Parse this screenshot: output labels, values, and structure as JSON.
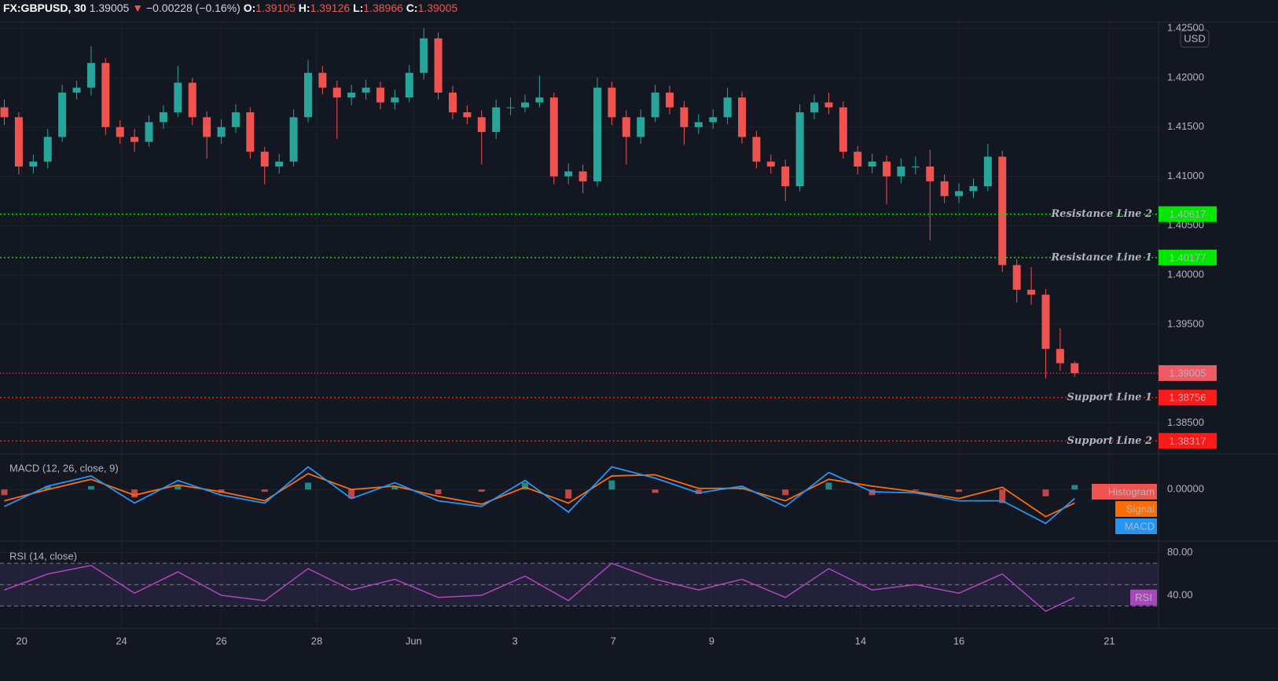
{
  "header": {
    "symbol": "FX:GBPUSD, 30",
    "change": "−0.00228 (−0.16%)",
    "o_label": "O:",
    "h_label": "H:",
    "l_label": "L:",
    "c_label": "C:"
  },
  "chart_data": [
    {
      "type": "candlestick",
      "currency": "USD",
      "up_color": "#26a69a",
      "down_color": "#ef5350",
      "ylim": [
        1.382,
        1.4255
      ],
      "yticks": [
        {
          "value": 1.385,
          "label": "1.38500"
        },
        {
          "value": 1.39,
          "label": "1.39000"
        },
        {
          "value": 1.395,
          "label": "1.39500"
        },
        {
          "value": 1.4,
          "label": "1.40000"
        },
        {
          "value": 1.405,
          "label": "1.40500"
        },
        {
          "value": 1.41,
          "label": "1.41000"
        },
        {
          "value": 1.415,
          "label": "1.41500"
        },
        {
          "value": 1.42,
          "label": "1.42000"
        },
        {
          "value": 1.425,
          "label": "1.42500"
        }
      ],
      "xlim": [
        -0.3,
        79.8
      ],
      "xticks": [
        {
          "value": 1.2,
          "label": "20"
        },
        {
          "value": 8.1,
          "label": "24"
        },
        {
          "value": 15.0,
          "label": "26"
        },
        {
          "value": 21.6,
          "label": "28"
        },
        {
          "value": 28.3,
          "label": "Jun"
        },
        {
          "value": 35.3,
          "label": "3"
        },
        {
          "value": 42.1,
          "label": "7"
        },
        {
          "value": 48.9,
          "label": "9"
        },
        {
          "value": 59.2,
          "label": "14"
        },
        {
          "value": 66.0,
          "label": "16"
        },
        {
          "value": 76.4,
          "label": "21"
        }
      ],
      "levels": [
        {
          "name": "Resistance Line 2",
          "value": 1.40617,
          "color": "#00e600"
        },
        {
          "name": "Resistance Line 1",
          "value": 1.40177,
          "color": "#00e600"
        },
        {
          "name": "Support Line 1",
          "value": 1.38756,
          "color": "#ff1a1a"
        },
        {
          "name": "Support Line 2",
          "value": 1.38317,
          "color": "#ff1a1a"
        }
      ],
      "last_price_color": "#f05a63",
      "candles": [
        [
          1.417,
          1.4178,
          1.4152,
          1.416
        ],
        [
          1.416,
          1.4165,
          1.4102,
          1.411
        ],
        [
          1.411,
          1.4122,
          1.4103,
          1.4115
        ],
        [
          1.4115,
          1.4148,
          1.4108,
          1.414
        ],
        [
          1.414,
          1.4193,
          1.4135,
          1.4185
        ],
        [
          1.4185,
          1.4197,
          1.4178,
          1.419
        ],
        [
          1.419,
          1.4232,
          1.4182,
          1.4215
        ],
        [
          1.4215,
          1.422,
          1.4142,
          1.415
        ],
        [
          1.415,
          1.4157,
          1.4133,
          1.414
        ],
        [
          1.414,
          1.4148,
          1.4125,
          1.4135
        ],
        [
          1.4135,
          1.4162,
          1.413,
          1.4155
        ],
        [
          1.4155,
          1.4172,
          1.4148,
          1.4165
        ],
        [
          1.4165,
          1.4212,
          1.416,
          1.4195
        ],
        [
          1.4195,
          1.42,
          1.4152,
          1.416
        ],
        [
          1.416,
          1.4166,
          1.4118,
          1.414
        ],
        [
          1.414,
          1.4158,
          1.4133,
          1.415
        ],
        [
          1.415,
          1.4173,
          1.4144,
          1.4165
        ],
        [
          1.4165,
          1.417,
          1.4118,
          1.4125
        ],
        [
          1.4125,
          1.413,
          1.4092,
          1.411
        ],
        [
          1.411,
          1.4123,
          1.4103,
          1.4115
        ],
        [
          1.4115,
          1.4168,
          1.411,
          1.416
        ],
        [
          1.416,
          1.4218,
          1.4155,
          1.4205
        ],
        [
          1.4205,
          1.4212,
          1.4183,
          1.419
        ],
        [
          1.419,
          1.4197,
          1.4138,
          1.418
        ],
        [
          1.418,
          1.4193,
          1.4172,
          1.4185
        ],
        [
          1.4185,
          1.4198,
          1.4178,
          1.419
        ],
        [
          1.419,
          1.4196,
          1.4168,
          1.4175
        ],
        [
          1.4175,
          1.4188,
          1.4168,
          1.418
        ],
        [
          1.418,
          1.4213,
          1.4175,
          1.4205
        ],
        [
          1.4205,
          1.425,
          1.4198,
          1.424
        ],
        [
          1.424,
          1.4246,
          1.4178,
          1.4185
        ],
        [
          1.4185,
          1.4192,
          1.4158,
          1.4165
        ],
        [
          1.4165,
          1.4172,
          1.4153,
          1.416
        ],
        [
          1.416,
          1.4167,
          1.4112,
          1.4145
        ],
        [
          1.4145,
          1.4178,
          1.4138,
          1.417
        ],
        [
          1.417,
          1.418,
          1.4162,
          1.417
        ],
        [
          1.417,
          1.4183,
          1.4165,
          1.4175
        ],
        [
          1.4175,
          1.4202,
          1.417,
          1.418
        ],
        [
          1.418,
          1.4185,
          1.4092,
          1.41
        ],
        [
          1.41,
          1.4113,
          1.4092,
          1.4105
        ],
        [
          1.4105,
          1.4112,
          1.4083,
          1.4095
        ],
        [
          1.4095,
          1.42,
          1.409,
          1.419
        ],
        [
          1.419,
          1.4196,
          1.4152,
          1.416
        ],
        [
          1.416,
          1.4167,
          1.4112,
          1.414
        ],
        [
          1.414,
          1.4168,
          1.4133,
          1.416
        ],
        [
          1.416,
          1.4193,
          1.4155,
          1.4185
        ],
        [
          1.4185,
          1.4192,
          1.4163,
          1.417
        ],
        [
          1.417,
          1.4176,
          1.4132,
          1.415
        ],
        [
          1.415,
          1.4163,
          1.4143,
          1.4155
        ],
        [
          1.4155,
          1.4168,
          1.4148,
          1.416
        ],
        [
          1.416,
          1.419,
          1.4153,
          1.418
        ],
        [
          1.418,
          1.4186,
          1.4133,
          1.414
        ],
        [
          1.414,
          1.4146,
          1.4108,
          1.4115
        ],
        [
          1.4115,
          1.4122,
          1.4103,
          1.411
        ],
        [
          1.411,
          1.4117,
          1.4075,
          1.409
        ],
        [
          1.409,
          1.4173,
          1.4085,
          1.4165
        ],
        [
          1.4165,
          1.4183,
          1.4158,
          1.4175
        ],
        [
          1.4175,
          1.4185,
          1.4163,
          1.417
        ],
        [
          1.417,
          1.4176,
          1.4118,
          1.4125
        ],
        [
          1.4125,
          1.4131,
          1.4102,
          1.411
        ],
        [
          1.411,
          1.4123,
          1.4103,
          1.4115
        ],
        [
          1.4115,
          1.4121,
          1.4072,
          1.41
        ],
        [
          1.41,
          1.4118,
          1.4093,
          1.411
        ],
        [
          1.411,
          1.412,
          1.4102,
          1.411
        ],
        [
          1.411,
          1.4127,
          1.4035,
          1.4095
        ],
        [
          1.4095,
          1.4102,
          1.4073,
          1.408
        ],
        [
          1.408,
          1.4093,
          1.4073,
          1.4085
        ],
        [
          1.4085,
          1.4098,
          1.4078,
          1.409
        ],
        [
          1.409,
          1.4133,
          1.4085,
          1.412
        ],
        [
          1.412,
          1.4126,
          1.4003,
          1.401
        ],
        [
          1.401,
          1.4016,
          1.3972,
          1.3985
        ],
        [
          1.3985,
          1.4008,
          1.397,
          1.398
        ],
        [
          1.398,
          1.3986,
          1.3895,
          1.3925
        ],
        [
          1.3925,
          1.3946,
          1.3903,
          1.39105
        ],
        [
          1.39105,
          1.39126,
          1.38966,
          1.39005
        ]
      ]
    },
    {
      "type": "macd",
      "title": "MACD (12, 26, close, 9)",
      "ylim": [
        -0.0045,
        0.003
      ],
      "yticks": [
        {
          "value": 0,
          "label": "0.00000"
        }
      ],
      "hist_up_color": "#26a69a",
      "x": [
        0,
        3,
        6,
        9,
        12,
        15,
        18,
        21,
        24,
        27,
        30,
        33,
        36,
        39,
        42,
        45,
        48,
        51,
        54,
        57,
        60,
        63,
        66,
        69,
        72,
        74
      ],
      "series": [
        {
          "name": "Histogram",
          "color": "#ef5350",
          "values": [
            -0.0005,
            0.0003,
            0.0003,
            -0.0007,
            0.0004,
            -0.0003,
            -0.0002,
            0.0006,
            -0.0008,
            0.0003,
            -0.0004,
            -0.0002,
            0.0006,
            -0.0008,
            0.0008,
            -0.0003,
            -0.0004,
            0.0002,
            -0.0005,
            0.0006,
            -0.0005,
            -0.0001,
            -0.0002,
            -0.0012,
            -0.0006,
            0.0004
          ]
        },
        {
          "name": "Signal",
          "color": "#ff6d00",
          "values": [
            -0.001,
            0.0,
            0.0009,
            -0.0005,
            0.0004,
            -0.0002,
            -0.001,
            0.0014,
            0.0,
            0.0003,
            -0.0006,
            -0.0013,
            0.0002,
            -0.0012,
            0.0012,
            0.0013,
            0.0001,
            0.0001,
            -0.001,
            0.0009,
            0.0003,
            -0.0002,
            -0.0008,
            0.0002,
            -0.0024,
            -0.0012
          ]
        },
        {
          "name": "MACD",
          "color": "#2196f3",
          "values": [
            -0.0015,
            0.0003,
            0.0012,
            -0.0012,
            0.0008,
            -0.0005,
            -0.0012,
            0.002,
            -0.0008,
            0.0006,
            -0.001,
            -0.0015,
            0.0008,
            -0.002,
            0.002,
            0.001,
            -0.0003,
            0.0003,
            -0.0015,
            0.0015,
            -0.0002,
            -0.0003,
            -0.001,
            -0.001,
            -0.003,
            -0.0008
          ]
        }
      ]
    },
    {
      "type": "rsi",
      "title": "RSI (14, close)",
      "ylim": [
        9,
        90
      ],
      "yticks": [
        {
          "value": 80,
          "label": "80.00"
        },
        {
          "value": 40,
          "label": "40.00"
        }
      ],
      "bands": [
        70,
        50,
        30
      ],
      "x": [
        0,
        3,
        6,
        9,
        12,
        15,
        18,
        21,
        24,
        27,
        30,
        33,
        36,
        39,
        42,
        45,
        48,
        51,
        54,
        57,
        60,
        63,
        66,
        69,
        72,
        74
      ],
      "series": [
        {
          "name": "RSI",
          "color": "#ab47bc",
          "values": [
            45,
            60,
            68,
            42,
            62,
            40,
            35,
            65,
            45,
            55,
            38,
            40,
            58,
            35,
            70,
            55,
            45,
            55,
            38,
            65,
            45,
            50,
            42,
            60,
            25,
            38
          ]
        }
      ]
    }
  ]
}
